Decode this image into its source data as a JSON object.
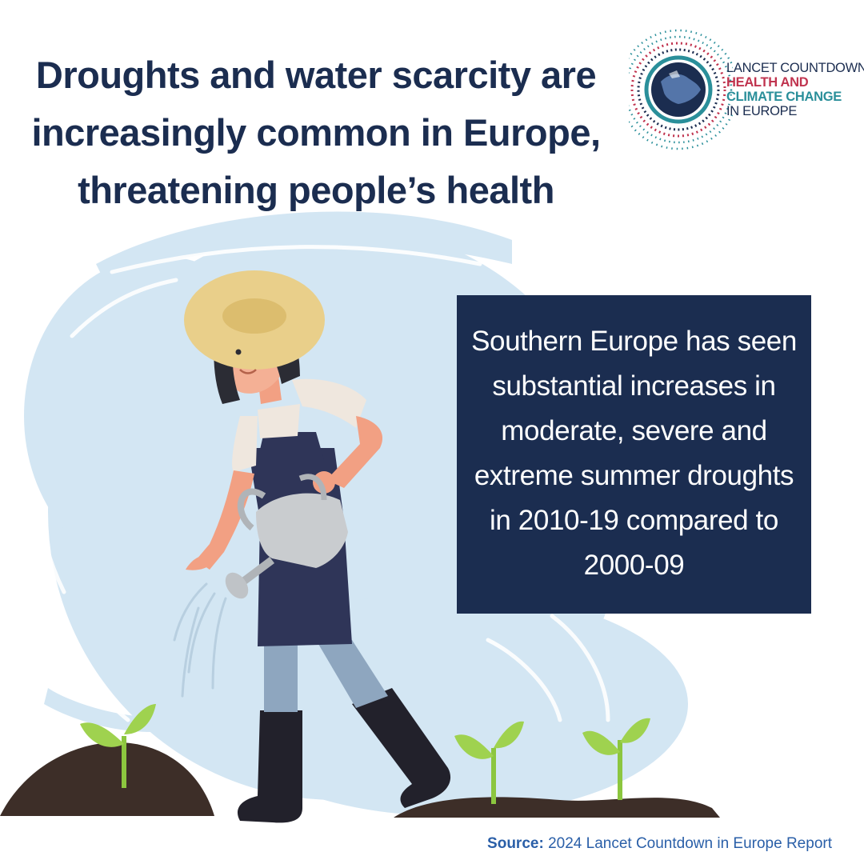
{
  "headline": {
    "lines": [
      "Droughts and water scarcity are",
      "increasingly common in Europe,",
      "threatening people’s health"
    ]
  },
  "logo": {
    "line1": "LANCET COUNTDOWN:",
    "line2": "HEALTH AND",
    "line3": "CLIMATE CHANGE",
    "line4": "IN EUROPE",
    "icon": "globe-europe-icon",
    "colors": {
      "navy": "#1b2d50",
      "red": "#c0344f",
      "teal": "#2a8f9a"
    }
  },
  "fact": {
    "lines": [
      "Southern Europe has seen",
      "substantial increases in",
      "moderate, severe and",
      "extreme summer droughts",
      "in 2010-19 compared to",
      "2000-09"
    ]
  },
  "source": {
    "label": "Source:",
    "text": " 2024 Lancet Countdown in Europe Report"
  },
  "illustration": {
    "subject": "woman-watering-seedlings-illustration",
    "colors": {
      "backdrop": "#d3e6f3",
      "soil": "#3d2e28",
      "sprout": "#8cc63f",
      "apron": "#2f3558",
      "hat": "#e9cf8a"
    }
  }
}
